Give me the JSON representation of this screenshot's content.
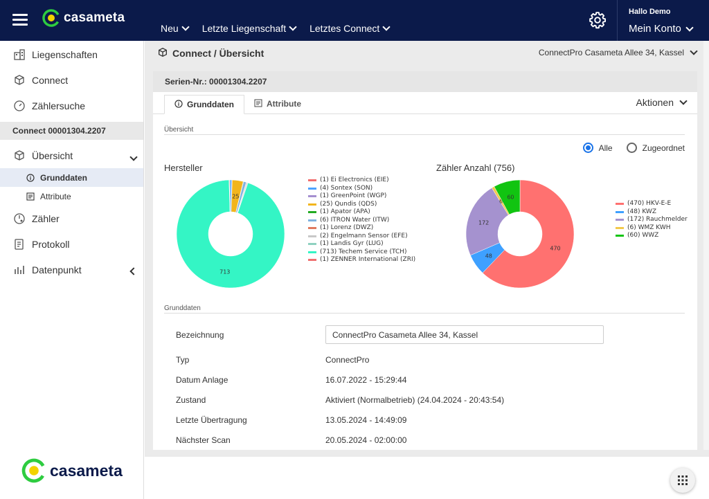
{
  "header": {
    "brand": "casameta",
    "nav": [
      "Neu",
      "Letzte Liegenschaft",
      "Letztes Connect"
    ],
    "greeting": "Hallo Demo",
    "account": "Mein Konto"
  },
  "sidebar": {
    "items_top": [
      {
        "label": "Liegenschaften",
        "icon": "building-icon"
      },
      {
        "label": "Connect",
        "icon": "cube-icon"
      },
      {
        "label": "Zählersuche",
        "icon": "search-meter-icon"
      }
    ],
    "section": "Connect 00001304.2207",
    "overview": "Übersicht",
    "subitems": [
      {
        "label": "Grunddaten",
        "icon": "info-icon",
        "active": true
      },
      {
        "label": "Attribute",
        "icon": "list-icon",
        "active": false
      }
    ],
    "items_bottom": [
      {
        "label": "Zähler",
        "icon": "meter-icon"
      },
      {
        "label": "Protokoll",
        "icon": "protocol-icon"
      },
      {
        "label": "Datenpunkt",
        "icon": "datapoint-icon"
      }
    ],
    "brand": "casameta"
  },
  "main": {
    "title": "Connect / Übersicht",
    "location": "ConnectPro Casameta Allee 34, Kassel",
    "serial": "Serien-Nr.: 00001304.2207",
    "tabs": [
      "Grunddaten",
      "Attribute"
    ],
    "actions": "Aktionen",
    "overview_label": "Übersicht",
    "radio_all": "Alle",
    "radio_assigned": "Zugeordnet",
    "grunddaten_label": "Grunddaten",
    "fields": [
      {
        "label": "Bezeichnung",
        "value": "ConnectPro Casameta Allee 34, Kassel"
      },
      {
        "label": "Typ",
        "value": "ConnectPro"
      },
      {
        "label": "Datum Anlage",
        "value": "16.07.2022 - 15:29:44"
      },
      {
        "label": "Zustand",
        "value": "Aktiviert (Normalbetrieb) (24.04.2024 - 20:43:54)"
      },
      {
        "label": "Letzte Übertragung",
        "value": "13.05.2024 - 14:49:09"
      },
      {
        "label": "Nächster Scan",
        "value": "20.05.2024 - 02:00:00"
      }
    ]
  },
  "chart_data": [
    {
      "type": "pie",
      "title": "Hersteller",
      "categories": [
        "(1) Ei Electronics (EIE)",
        "(4) Sontex (SON)",
        "(1) GreenPoint (WGP)",
        "(25) Qundis (QDS)",
        "(1) Apator (APA)",
        "(6) ITRON Water (ITW)",
        "(1) Lorenz (DWZ)",
        "(2) Engelmann Sensor (EFE)",
        "(1) Landis Gyr (LUG)",
        "(713) Techem Service (TCH)",
        "(1) ZENNER International (ZRI)"
      ],
      "values": [
        1,
        4,
        1,
        25,
        1,
        6,
        1,
        2,
        1,
        713,
        1
      ],
      "colors": [
        "#f26d6d",
        "#4da3ff",
        "#a58fd0",
        "#f2b51c",
        "#22aa22",
        "#7fb2e0",
        "#e07a5f",
        "#c8c8c8",
        "#8fd1c0",
        "#34f5c5",
        "#f07070"
      ],
      "slice_labels": [
        "",
        "",
        "",
        "25",
        "",
        "",
        "",
        "",
        "",
        "713",
        ""
      ]
    },
    {
      "type": "pie",
      "title": "Zähler Anzahl (756)",
      "categories": [
        "(470) HKV-E-E",
        "(48) KWZ",
        "(172) Rauchmelder",
        "(6) WMZ KWH",
        "(60) WWZ"
      ],
      "values": [
        470,
        48,
        172,
        6,
        60
      ],
      "colors": [
        "#ff7170",
        "#3ea0ff",
        "#a592cf",
        "#f2c94c",
        "#11c411"
      ],
      "slice_labels": [
        "470",
        "48",
        "172",
        "6",
        "60"
      ]
    }
  ]
}
